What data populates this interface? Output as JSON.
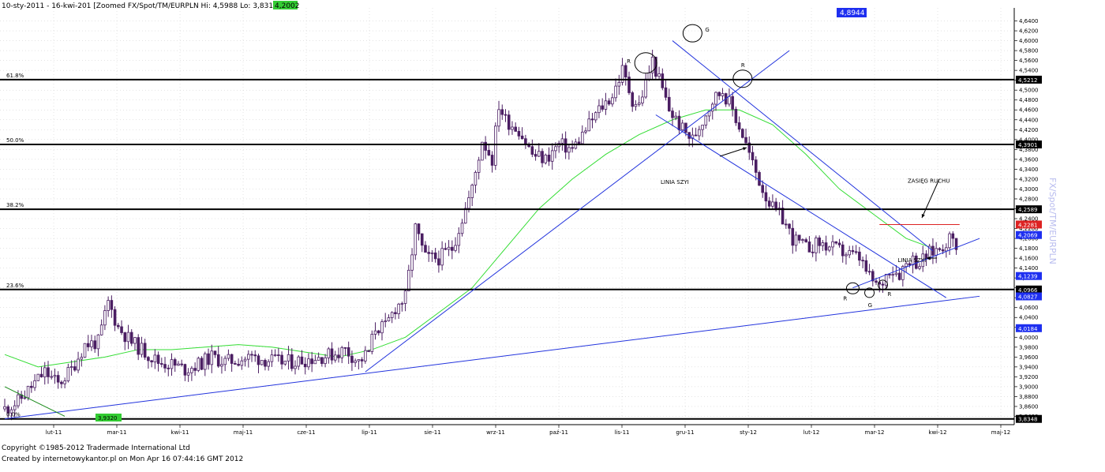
{
  "header": {
    "title": "10-sty-2011 - 16-kwi-201  [Zoomed  FX/Spot/TM/EURPLN  Hi: 4,5988  Lo: 3,831",
    "last_value": "4,2002",
    "top_price_tag": "4,8944"
  },
  "side_label": "FX/Spot/TM/EURPLN",
  "footer": {
    "copyright": "Copyright ©1985-2012 Tradermade International Ltd",
    "created": "Created by internetowykantor.pl    on Mon Apr 16 07:44:16 GMT 2012"
  },
  "colors": {
    "candle": "#4b1e63",
    "ma": "#33dd33",
    "trend": "#2233dd",
    "level": "#000000",
    "resistance": "#dd2222",
    "tag_blue": "#1e2ff0",
    "tag_black": "#000000",
    "tag_green": "#33cc33",
    "tag_red": "#dd2222"
  },
  "chart_data": {
    "type": "candlestick",
    "ylim": [
      3.82,
      4.66
    ],
    "y_ticks": [
      "4,6400",
      "4,6200",
      "4,6000",
      "4,5800",
      "4,5600",
      "4,5400",
      "4,5200",
      "4,5000",
      "4,4800",
      "4,4600",
      "4,4400",
      "4,4200",
      "4,4000",
      "4,3800",
      "4,3600",
      "4,3400",
      "4,3200",
      "4,3000",
      "4,2800",
      "4,2600",
      "4,2400",
      "4,2200",
      "4,2000",
      "4,1800",
      "4,1600",
      "4,1400",
      "4,1200",
      "4,1000",
      "4,0800",
      "4,0600",
      "4,0400",
      "4,0200",
      "4,0000",
      "3,9800",
      "3,9600",
      "3,9400",
      "3,9200",
      "3,9000",
      "3,8800",
      "3,8600",
      "3,8400"
    ],
    "x_ticks": [
      "lut-11",
      "mar-11",
      "kwi-11",
      "maj-11",
      "cze-11",
      "lip-11",
      "sie-11",
      "wrz-11",
      "paź-11",
      "lis-11",
      "gru-11",
      "sty-12",
      "lut-12",
      "mar-12",
      "kwi-12",
      "maj-12"
    ],
    "close_path": [
      [
        0,
        3.855
      ],
      [
        4,
        3.87
      ],
      [
        8,
        3.9
      ],
      [
        12,
        3.93
      ],
      [
        16,
        3.905
      ],
      [
        20,
        3.935
      ],
      [
        24,
        3.985
      ],
      [
        28,
        3.99
      ],
      [
        31,
        4.07
      ],
      [
        34,
        4.02
      ],
      [
        38,
        3.99
      ],
      [
        42,
        3.97
      ],
      [
        46,
        3.95
      ],
      [
        50,
        3.945
      ],
      [
        54,
        3.935
      ],
      [
        58,
        3.945
      ],
      [
        62,
        3.96
      ],
      [
        66,
        3.95
      ],
      [
        70,
        3.955
      ],
      [
        74,
        3.96
      ],
      [
        78,
        3.955
      ],
      [
        82,
        3.95
      ],
      [
        86,
        3.95
      ],
      [
        90,
        3.955
      ],
      [
        94,
        3.96
      ],
      [
        98,
        3.965
      ],
      [
        102,
        3.975
      ],
      [
        106,
        3.95
      ],
      [
        109,
        3.97
      ],
      [
        111,
        4.02
      ],
      [
        114,
        4.02
      ],
      [
        117,
        4.06
      ],
      [
        120,
        4.08
      ],
      [
        123,
        4.22
      ],
      [
        126,
        4.16
      ],
      [
        130,
        4.16
      ],
      [
        134,
        4.18
      ],
      [
        137,
        4.24
      ],
      [
        140,
        4.3
      ],
      [
        143,
        4.4
      ],
      [
        146,
        4.36
      ],
      [
        148,
        4.47
      ],
      [
        150,
        4.44
      ],
      [
        154,
        4.42
      ],
      [
        158,
        4.37
      ],
      [
        162,
        4.36
      ],
      [
        166,
        4.39
      ],
      [
        170,
        4.38
      ],
      [
        174,
        4.42
      ],
      [
        178,
        4.46
      ],
      [
        182,
        4.49
      ],
      [
        185,
        4.54
      ],
      [
        188,
        4.48
      ],
      [
        190,
        4.47
      ],
      [
        194,
        4.56
      ],
      [
        196,
        4.52
      ],
      [
        199,
        4.46
      ],
      [
        203,
        4.42
      ],
      [
        206,
        4.4
      ],
      [
        209,
        4.44
      ],
      [
        212,
        4.48
      ],
      [
        215,
        4.5
      ],
      [
        218,
        4.46
      ],
      [
        221,
        4.41
      ],
      [
        224,
        4.35
      ],
      [
        227,
        4.3
      ],
      [
        230,
        4.26
      ],
      [
        233,
        4.24
      ],
      [
        236,
        4.2
      ],
      [
        240,
        4.18
      ],
      [
        244,
        4.19
      ],
      [
        248,
        4.18
      ],
      [
        252,
        4.17
      ],
      [
        256,
        4.16
      ],
      [
        259,
        4.12
      ],
      [
        262,
        4.1
      ],
      [
        265,
        4.14
      ],
      [
        268,
        4.13
      ],
      [
        271,
        4.16
      ],
      [
        274,
        4.15
      ],
      [
        277,
        4.17
      ],
      [
        280,
        4.18
      ],
      [
        283,
        4.2
      ],
      [
        285,
        4.19
      ]
    ],
    "moving_average": [
      [
        0,
        3.965
      ],
      [
        10,
        3.94
      ],
      [
        20,
        3.95
      ],
      [
        30,
        3.96
      ],
      [
        40,
        3.975
      ],
      [
        50,
        3.975
      ],
      [
        60,
        3.98
      ],
      [
        70,
        3.985
      ],
      [
        80,
        3.98
      ],
      [
        90,
        3.97
      ],
      [
        100,
        3.96
      ],
      [
        110,
        3.975
      ],
      [
        120,
        4.0
      ],
      [
        130,
        4.05
      ],
      [
        140,
        4.1
      ],
      [
        150,
        4.18
      ],
      [
        160,
        4.26
      ],
      [
        170,
        4.32
      ],
      [
        180,
        4.37
      ],
      [
        190,
        4.41
      ],
      [
        200,
        4.44
      ],
      [
        210,
        4.46
      ],
      [
        220,
        4.46
      ],
      [
        230,
        4.43
      ],
      [
        240,
        4.37
      ],
      [
        250,
        4.3
      ],
      [
        260,
        4.25
      ],
      [
        270,
        4.2
      ],
      [
        278,
        4.18
      ]
    ],
    "fib_levels": [
      {
        "label": "61.8%",
        "value": 4.5212,
        "tag": "4,5212"
      },
      {
        "label": "50.0%",
        "value": 4.3901,
        "tag": "4,3901"
      },
      {
        "label": "38.2%",
        "value": 4.2589,
        "tag": "4,2589"
      },
      {
        "label": "23.6%",
        "value": 4.0966,
        "tag": "4,0966"
      },
      {
        "label": "0.0%",
        "value": 3.8348,
        "tag": "3,8348"
      }
    ],
    "price_tags": [
      {
        "value": 4.2281,
        "text": "4,2281",
        "color": "red"
      },
      {
        "value": 4.2069,
        "text": "4,2069",
        "color": "blue"
      },
      {
        "value": 4.1239,
        "text": "4,1239",
        "color": "blue"
      },
      {
        "value": 4.0827,
        "text": "4,0827",
        "color": "blue"
      },
      {
        "value": 4.0184,
        "text": "4,0184",
        "color": "blue"
      }
    ],
    "bottom_green_tag": "3,9320",
    "trendlines": [
      [
        [
          0,
          3.835
        ],
        [
          292,
          4.083
        ]
      ],
      [
        [
          108,
          3.93
        ],
        [
          235,
          4.58
        ]
      ],
      [
        [
          200,
          4.6
        ],
        [
          278,
          4.175
        ]
      ],
      [
        [
          195,
          4.45
        ],
        [
          282,
          4.08
        ]
      ],
      [
        [
          254,
          4.1
        ],
        [
          292,
          4.2
        ]
      ],
      [
        [
          0,
          3.9
        ],
        [
          18,
          3.84
        ]
      ]
    ],
    "resistance_line": {
      "from": 262,
      "to": 286,
      "value": 4.2281
    },
    "circles": [
      {
        "t": 192,
        "v": 4.555,
        "rx": 7,
        "ry": 13,
        "label": "R",
        "label_side": "left"
      },
      {
        "t": 206,
        "v": 4.615,
        "rx": 6,
        "ry": 11,
        "label": "G",
        "label_side": "right"
      },
      {
        "t": 221,
        "v": 4.523,
        "rx": 6,
        "ry": 11,
        "label": "R",
        "label_side": "top"
      },
      {
        "t": 254,
        "v": 4.099,
        "rx": 4,
        "ry": 7,
        "label": "R",
        "label_side": "below-left"
      },
      {
        "t": 259,
        "v": 4.09,
        "rx": 3,
        "ry": 6,
        "label": "G",
        "label_side": "below"
      },
      {
        "t": 263,
        "v": 4.106,
        "rx": 3,
        "ry": 6,
        "label": "R",
        "label_side": "below-right"
      }
    ],
    "annotations": [
      {
        "text": "LINIA SZYI",
        "t": 200,
        "v": 4.31
      },
      {
        "text": "LINIA SZYI",
        "t": 271,
        "v": 4.152
      },
      {
        "text": "ZASIĘG RUCHU",
        "t": 274,
        "v": 4.313
      }
    ]
  }
}
